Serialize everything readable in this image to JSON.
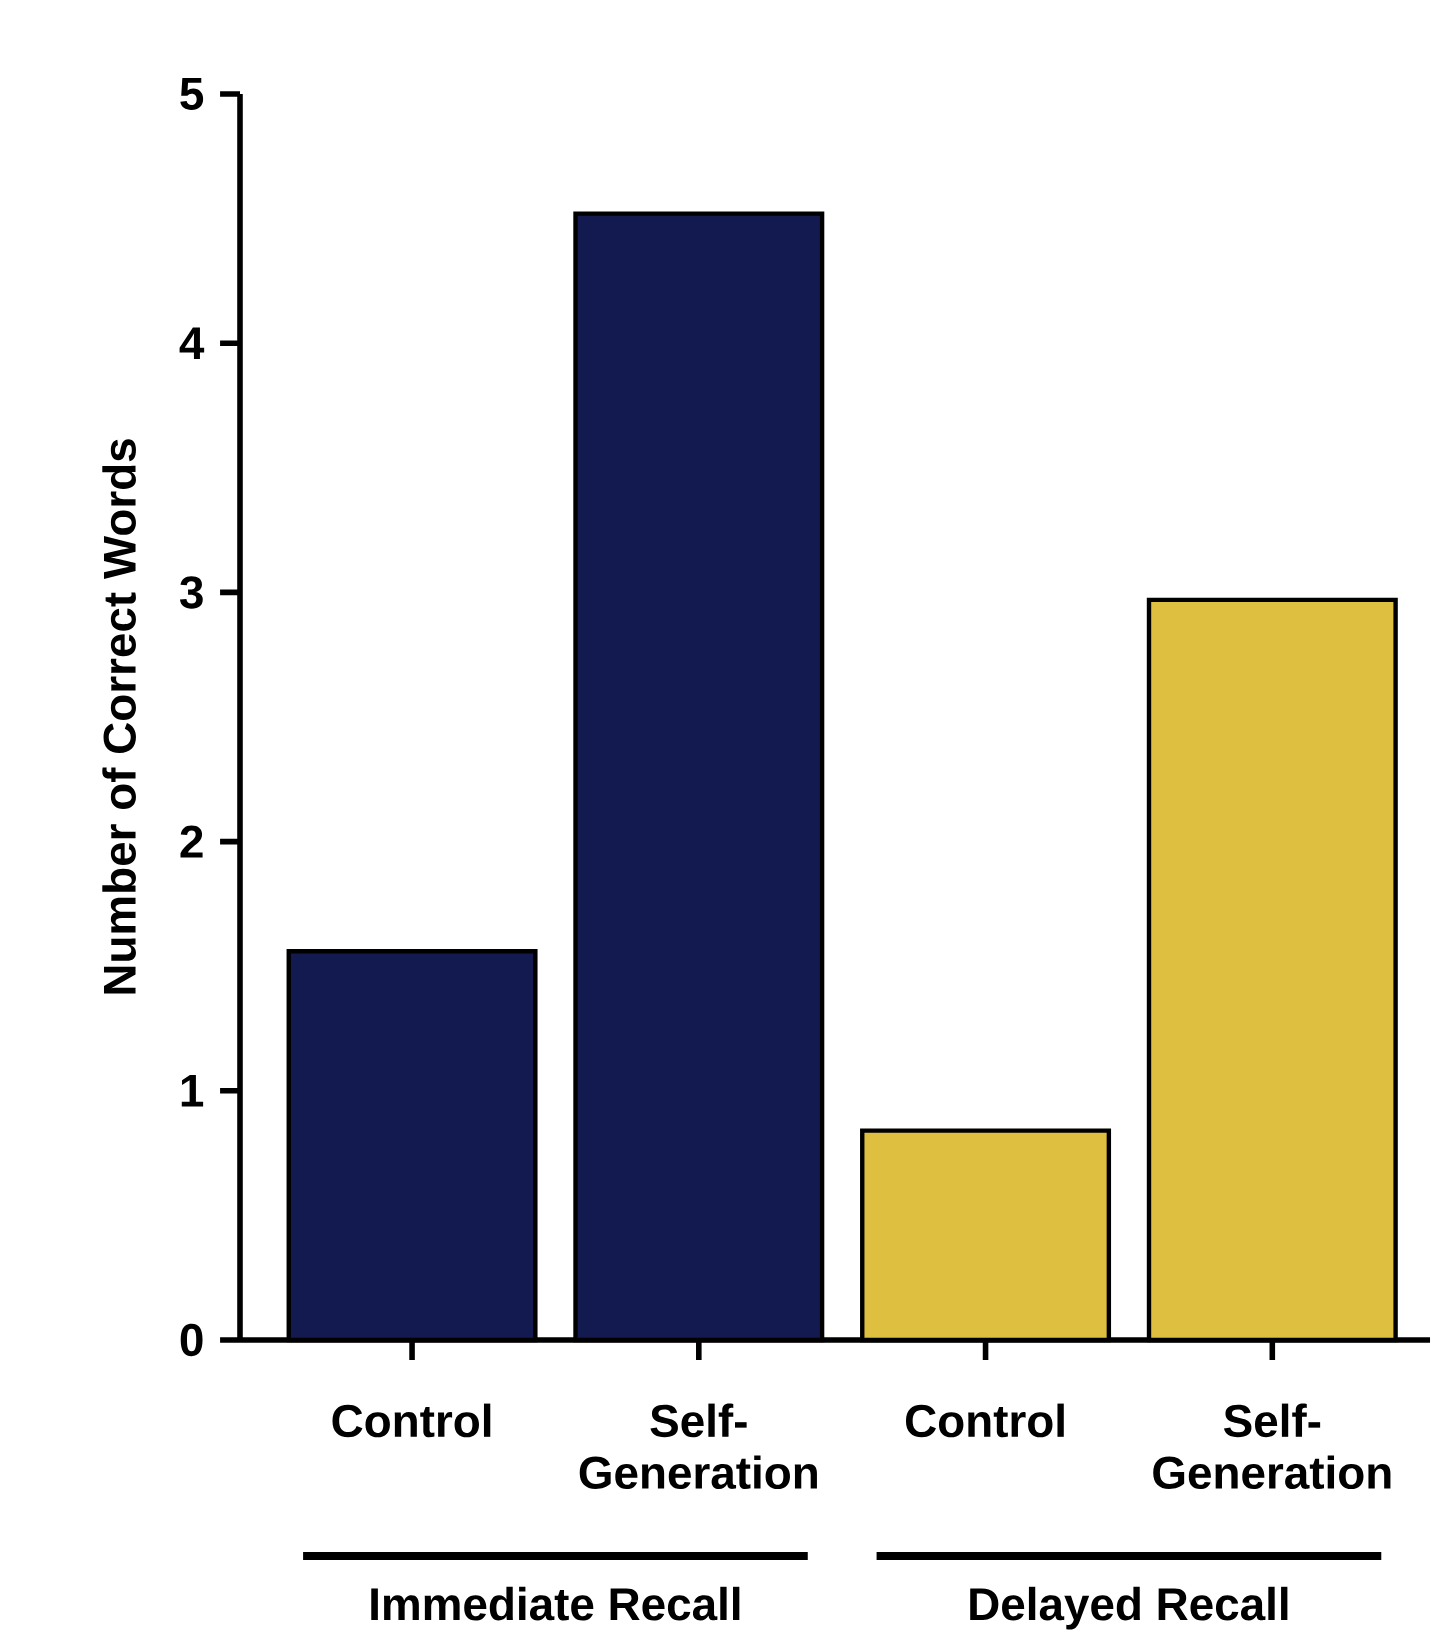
{
  "chart_data": {
    "type": "bar",
    "categories": [
      "Control",
      "Self-Generation",
      "Control",
      "Self-Generation"
    ],
    "values": [
      1.56,
      4.52,
      0.84,
      2.97
    ],
    "colors": [
      "#131a4f",
      "#131a4f",
      "#dfbf40",
      "#dfbf40"
    ],
    "ylabel": "Number of Correct Words",
    "ylim": [
      0,
      5
    ],
    "yticks": [
      0,
      1,
      2,
      3,
      4,
      5
    ],
    "annotations": [
      "Immediate Recall",
      "Delayed Recall"
    ]
  }
}
